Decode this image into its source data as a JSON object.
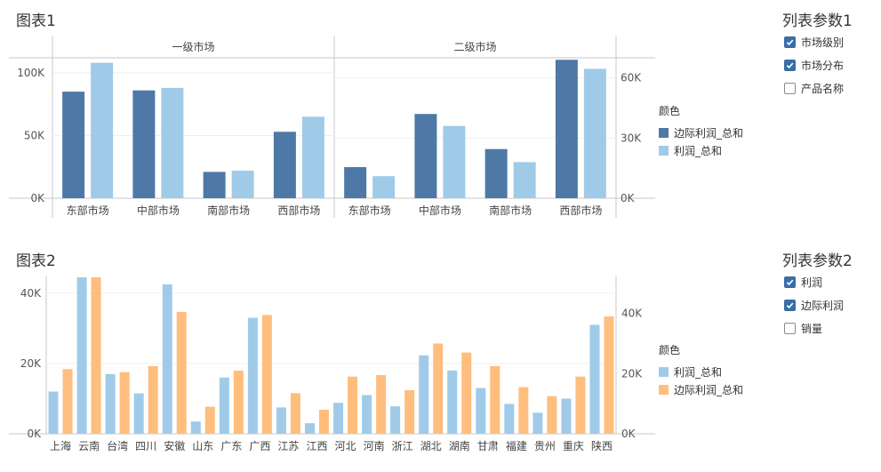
{
  "chart1": {
    "title": "图表1",
    "legend_title": "颜色",
    "legend": [
      "边际利润_总和",
      "利润_总和"
    ],
    "colors": {
      "dark_blue": "#4e79a7",
      "light_blue": "#a0cbe8"
    }
  },
  "chart2": {
    "title": "图表2",
    "legend_title": "颜色",
    "legend": [
      "利润_总和",
      "边际利润_总和"
    ],
    "colors": {
      "light_blue": "#a0cbe8",
      "orange": "#ffbe7d"
    }
  },
  "param1": {
    "title": "列表参数1",
    "items": [
      {
        "label": "市场级别",
        "checked": true
      },
      {
        "label": "市场分布",
        "checked": true
      },
      {
        "label": "产品名称",
        "checked": false
      }
    ]
  },
  "param2": {
    "title": "列表参数2",
    "items": [
      {
        "label": "利润",
        "checked": true
      },
      {
        "label": "边际利润",
        "checked": true
      },
      {
        "label": "销量",
        "checked": false
      }
    ]
  },
  "chart_data": [
    {
      "type": "bar",
      "title": "图表1",
      "panels": [
        {
          "header": "一级市场",
          "categories": [
            "东部市场",
            "中部市场",
            "南部市场",
            "西部市场"
          ],
          "series": [
            {
              "name": "边际利润_总和",
              "axis": "left",
              "values": [
                85000,
                86000,
                21000,
                53000
              ]
            },
            {
              "name": "利润_总和",
              "axis": "left",
              "values": [
                108000,
                88000,
                22000,
                65000
              ]
            }
          ],
          "ylim": [
            0,
            112000
          ],
          "yticks": [
            0,
            50000,
            100000
          ],
          "ytick_labels": [
            "0K",
            "50K",
            "100K"
          ]
        },
        {
          "header": "二级市场",
          "categories": [
            "东部市场",
            "中部市场",
            "南部市场",
            "西部市场"
          ],
          "series": [
            {
              "name": "边际利润_总和",
              "axis": "right",
              "values": [
                15500,
                42000,
                24500,
                69000
              ]
            },
            {
              "name": "利润_总和",
              "axis": "right",
              "values": [
                11000,
                36000,
                18000,
                64500
              ]
            }
          ],
          "ylim": [
            0,
            70000
          ],
          "yticks": [
            0,
            30000,
            60000
          ],
          "ytick_labels": [
            "0K",
            "30K",
            "60K"
          ]
        }
      ],
      "legend_position": "right"
    },
    {
      "type": "bar",
      "title": "图表2",
      "categories": [
        "上海",
        "云南",
        "台湾",
        "四川",
        "安徽",
        "山东",
        "广东",
        "广西",
        "江苏",
        "江西",
        "河北",
        "河南",
        "浙江",
        "湖北",
        "湖南",
        "甘肃",
        "福建",
        "贵州",
        "重庆",
        "陕西"
      ],
      "series": [
        {
          "name": "利润_总和",
          "axis": "left",
          "values": [
            12000,
            44500,
            17000,
            11500,
            42500,
            3500,
            16000,
            33000,
            7500,
            3000,
            8800,
            11000,
            7800,
            22300,
            18000,
            13000,
            8500,
            6000,
            10000,
            31000
          ]
        },
        {
          "name": "边际利润_总和",
          "axis": "right",
          "values": [
            21500,
            52000,
            20500,
            22500,
            40500,
            9000,
            21000,
            39500,
            13500,
            8000,
            19000,
            19500,
            14500,
            30000,
            27000,
            22500,
            15500,
            12500,
            19000,
            39000
          ]
        }
      ],
      "ylim_left": [
        0,
        44500
      ],
      "yticks_left": [
        0,
        20000,
        40000
      ],
      "ytick_labels_left": [
        "0K",
        "20K",
        "40K"
      ],
      "ylim_right": [
        0,
        52000
      ],
      "yticks_right": [
        0,
        20000,
        40000
      ],
      "ytick_labels_right": [
        "0K",
        "20K",
        "40K"
      ],
      "legend_position": "right"
    }
  ]
}
